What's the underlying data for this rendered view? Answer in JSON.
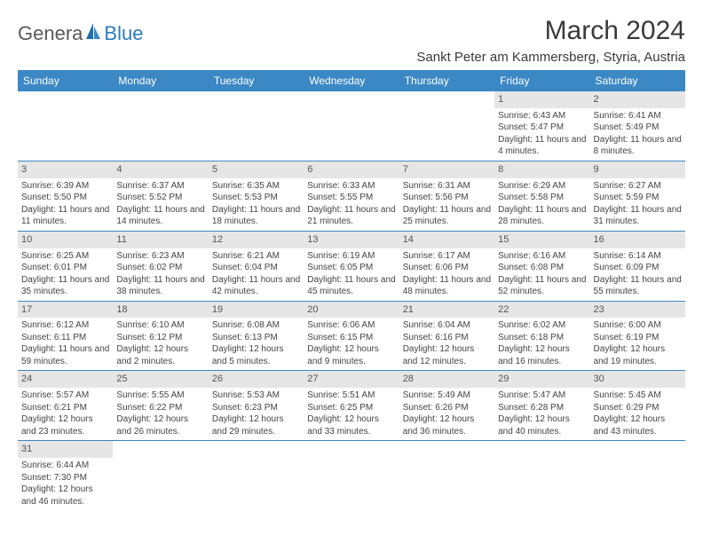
{
  "brand": {
    "gen": "Genera",
    "blue": "Blue"
  },
  "title": "March 2024",
  "location": "Sankt Peter am Kammersberg, Styria, Austria",
  "colors": {
    "header_bg": "#3b88c4",
    "header_text": "#ffffff",
    "daynum_bg": "#e6e6e6",
    "border": "#3b88c4",
    "logo_gray": "#5a5a5a",
    "logo_blue": "#2b7bbf"
  },
  "day_headers": [
    "Sunday",
    "Monday",
    "Tuesday",
    "Wednesday",
    "Thursday",
    "Friday",
    "Saturday"
  ],
  "weeks": [
    [
      {
        "n": "",
        "sr": "",
        "ss": "",
        "dl": ""
      },
      {
        "n": "",
        "sr": "",
        "ss": "",
        "dl": ""
      },
      {
        "n": "",
        "sr": "",
        "ss": "",
        "dl": ""
      },
      {
        "n": "",
        "sr": "",
        "ss": "",
        "dl": ""
      },
      {
        "n": "",
        "sr": "",
        "ss": "",
        "dl": ""
      },
      {
        "n": "1",
        "sr": "Sunrise: 6:43 AM",
        "ss": "Sunset: 5:47 PM",
        "dl": "Daylight: 11 hours and 4 minutes."
      },
      {
        "n": "2",
        "sr": "Sunrise: 6:41 AM",
        "ss": "Sunset: 5:49 PM",
        "dl": "Daylight: 11 hours and 8 minutes."
      }
    ],
    [
      {
        "n": "3",
        "sr": "Sunrise: 6:39 AM",
        "ss": "Sunset: 5:50 PM",
        "dl": "Daylight: 11 hours and 11 minutes."
      },
      {
        "n": "4",
        "sr": "Sunrise: 6:37 AM",
        "ss": "Sunset: 5:52 PM",
        "dl": "Daylight: 11 hours and 14 minutes."
      },
      {
        "n": "5",
        "sr": "Sunrise: 6:35 AM",
        "ss": "Sunset: 5:53 PM",
        "dl": "Daylight: 11 hours and 18 minutes."
      },
      {
        "n": "6",
        "sr": "Sunrise: 6:33 AM",
        "ss": "Sunset: 5:55 PM",
        "dl": "Daylight: 11 hours and 21 minutes."
      },
      {
        "n": "7",
        "sr": "Sunrise: 6:31 AM",
        "ss": "Sunset: 5:56 PM",
        "dl": "Daylight: 11 hours and 25 minutes."
      },
      {
        "n": "8",
        "sr": "Sunrise: 6:29 AM",
        "ss": "Sunset: 5:58 PM",
        "dl": "Daylight: 11 hours and 28 minutes."
      },
      {
        "n": "9",
        "sr": "Sunrise: 6:27 AM",
        "ss": "Sunset: 5:59 PM",
        "dl": "Daylight: 11 hours and 31 minutes."
      }
    ],
    [
      {
        "n": "10",
        "sr": "Sunrise: 6:25 AM",
        "ss": "Sunset: 6:01 PM",
        "dl": "Daylight: 11 hours and 35 minutes."
      },
      {
        "n": "11",
        "sr": "Sunrise: 6:23 AM",
        "ss": "Sunset: 6:02 PM",
        "dl": "Daylight: 11 hours and 38 minutes."
      },
      {
        "n": "12",
        "sr": "Sunrise: 6:21 AM",
        "ss": "Sunset: 6:04 PM",
        "dl": "Daylight: 11 hours and 42 minutes."
      },
      {
        "n": "13",
        "sr": "Sunrise: 6:19 AM",
        "ss": "Sunset: 6:05 PM",
        "dl": "Daylight: 11 hours and 45 minutes."
      },
      {
        "n": "14",
        "sr": "Sunrise: 6:17 AM",
        "ss": "Sunset: 6:06 PM",
        "dl": "Daylight: 11 hours and 48 minutes."
      },
      {
        "n": "15",
        "sr": "Sunrise: 6:16 AM",
        "ss": "Sunset: 6:08 PM",
        "dl": "Daylight: 11 hours and 52 minutes."
      },
      {
        "n": "16",
        "sr": "Sunrise: 6:14 AM",
        "ss": "Sunset: 6:09 PM",
        "dl": "Daylight: 11 hours and 55 minutes."
      }
    ],
    [
      {
        "n": "17",
        "sr": "Sunrise: 6:12 AM",
        "ss": "Sunset: 6:11 PM",
        "dl": "Daylight: 11 hours and 59 minutes."
      },
      {
        "n": "18",
        "sr": "Sunrise: 6:10 AM",
        "ss": "Sunset: 6:12 PM",
        "dl": "Daylight: 12 hours and 2 minutes."
      },
      {
        "n": "19",
        "sr": "Sunrise: 6:08 AM",
        "ss": "Sunset: 6:13 PM",
        "dl": "Daylight: 12 hours and 5 minutes."
      },
      {
        "n": "20",
        "sr": "Sunrise: 6:06 AM",
        "ss": "Sunset: 6:15 PM",
        "dl": "Daylight: 12 hours and 9 minutes."
      },
      {
        "n": "21",
        "sr": "Sunrise: 6:04 AM",
        "ss": "Sunset: 6:16 PM",
        "dl": "Daylight: 12 hours and 12 minutes."
      },
      {
        "n": "22",
        "sr": "Sunrise: 6:02 AM",
        "ss": "Sunset: 6:18 PM",
        "dl": "Daylight: 12 hours and 16 minutes."
      },
      {
        "n": "23",
        "sr": "Sunrise: 6:00 AM",
        "ss": "Sunset: 6:19 PM",
        "dl": "Daylight: 12 hours and 19 minutes."
      }
    ],
    [
      {
        "n": "24",
        "sr": "Sunrise: 5:57 AM",
        "ss": "Sunset: 6:21 PM",
        "dl": "Daylight: 12 hours and 23 minutes."
      },
      {
        "n": "25",
        "sr": "Sunrise: 5:55 AM",
        "ss": "Sunset: 6:22 PM",
        "dl": "Daylight: 12 hours and 26 minutes."
      },
      {
        "n": "26",
        "sr": "Sunrise: 5:53 AM",
        "ss": "Sunset: 6:23 PM",
        "dl": "Daylight: 12 hours and 29 minutes."
      },
      {
        "n": "27",
        "sr": "Sunrise: 5:51 AM",
        "ss": "Sunset: 6:25 PM",
        "dl": "Daylight: 12 hours and 33 minutes."
      },
      {
        "n": "28",
        "sr": "Sunrise: 5:49 AM",
        "ss": "Sunset: 6:26 PM",
        "dl": "Daylight: 12 hours and 36 minutes."
      },
      {
        "n": "29",
        "sr": "Sunrise: 5:47 AM",
        "ss": "Sunset: 6:28 PM",
        "dl": "Daylight: 12 hours and 40 minutes."
      },
      {
        "n": "30",
        "sr": "Sunrise: 5:45 AM",
        "ss": "Sunset: 6:29 PM",
        "dl": "Daylight: 12 hours and 43 minutes."
      }
    ],
    [
      {
        "n": "31",
        "sr": "Sunrise: 6:44 AM",
        "ss": "Sunset: 7:30 PM",
        "dl": "Daylight: 12 hours and 46 minutes."
      },
      {
        "n": "",
        "sr": "",
        "ss": "",
        "dl": ""
      },
      {
        "n": "",
        "sr": "",
        "ss": "",
        "dl": ""
      },
      {
        "n": "",
        "sr": "",
        "ss": "",
        "dl": ""
      },
      {
        "n": "",
        "sr": "",
        "ss": "",
        "dl": ""
      },
      {
        "n": "",
        "sr": "",
        "ss": "",
        "dl": ""
      },
      {
        "n": "",
        "sr": "",
        "ss": "",
        "dl": ""
      }
    ]
  ]
}
